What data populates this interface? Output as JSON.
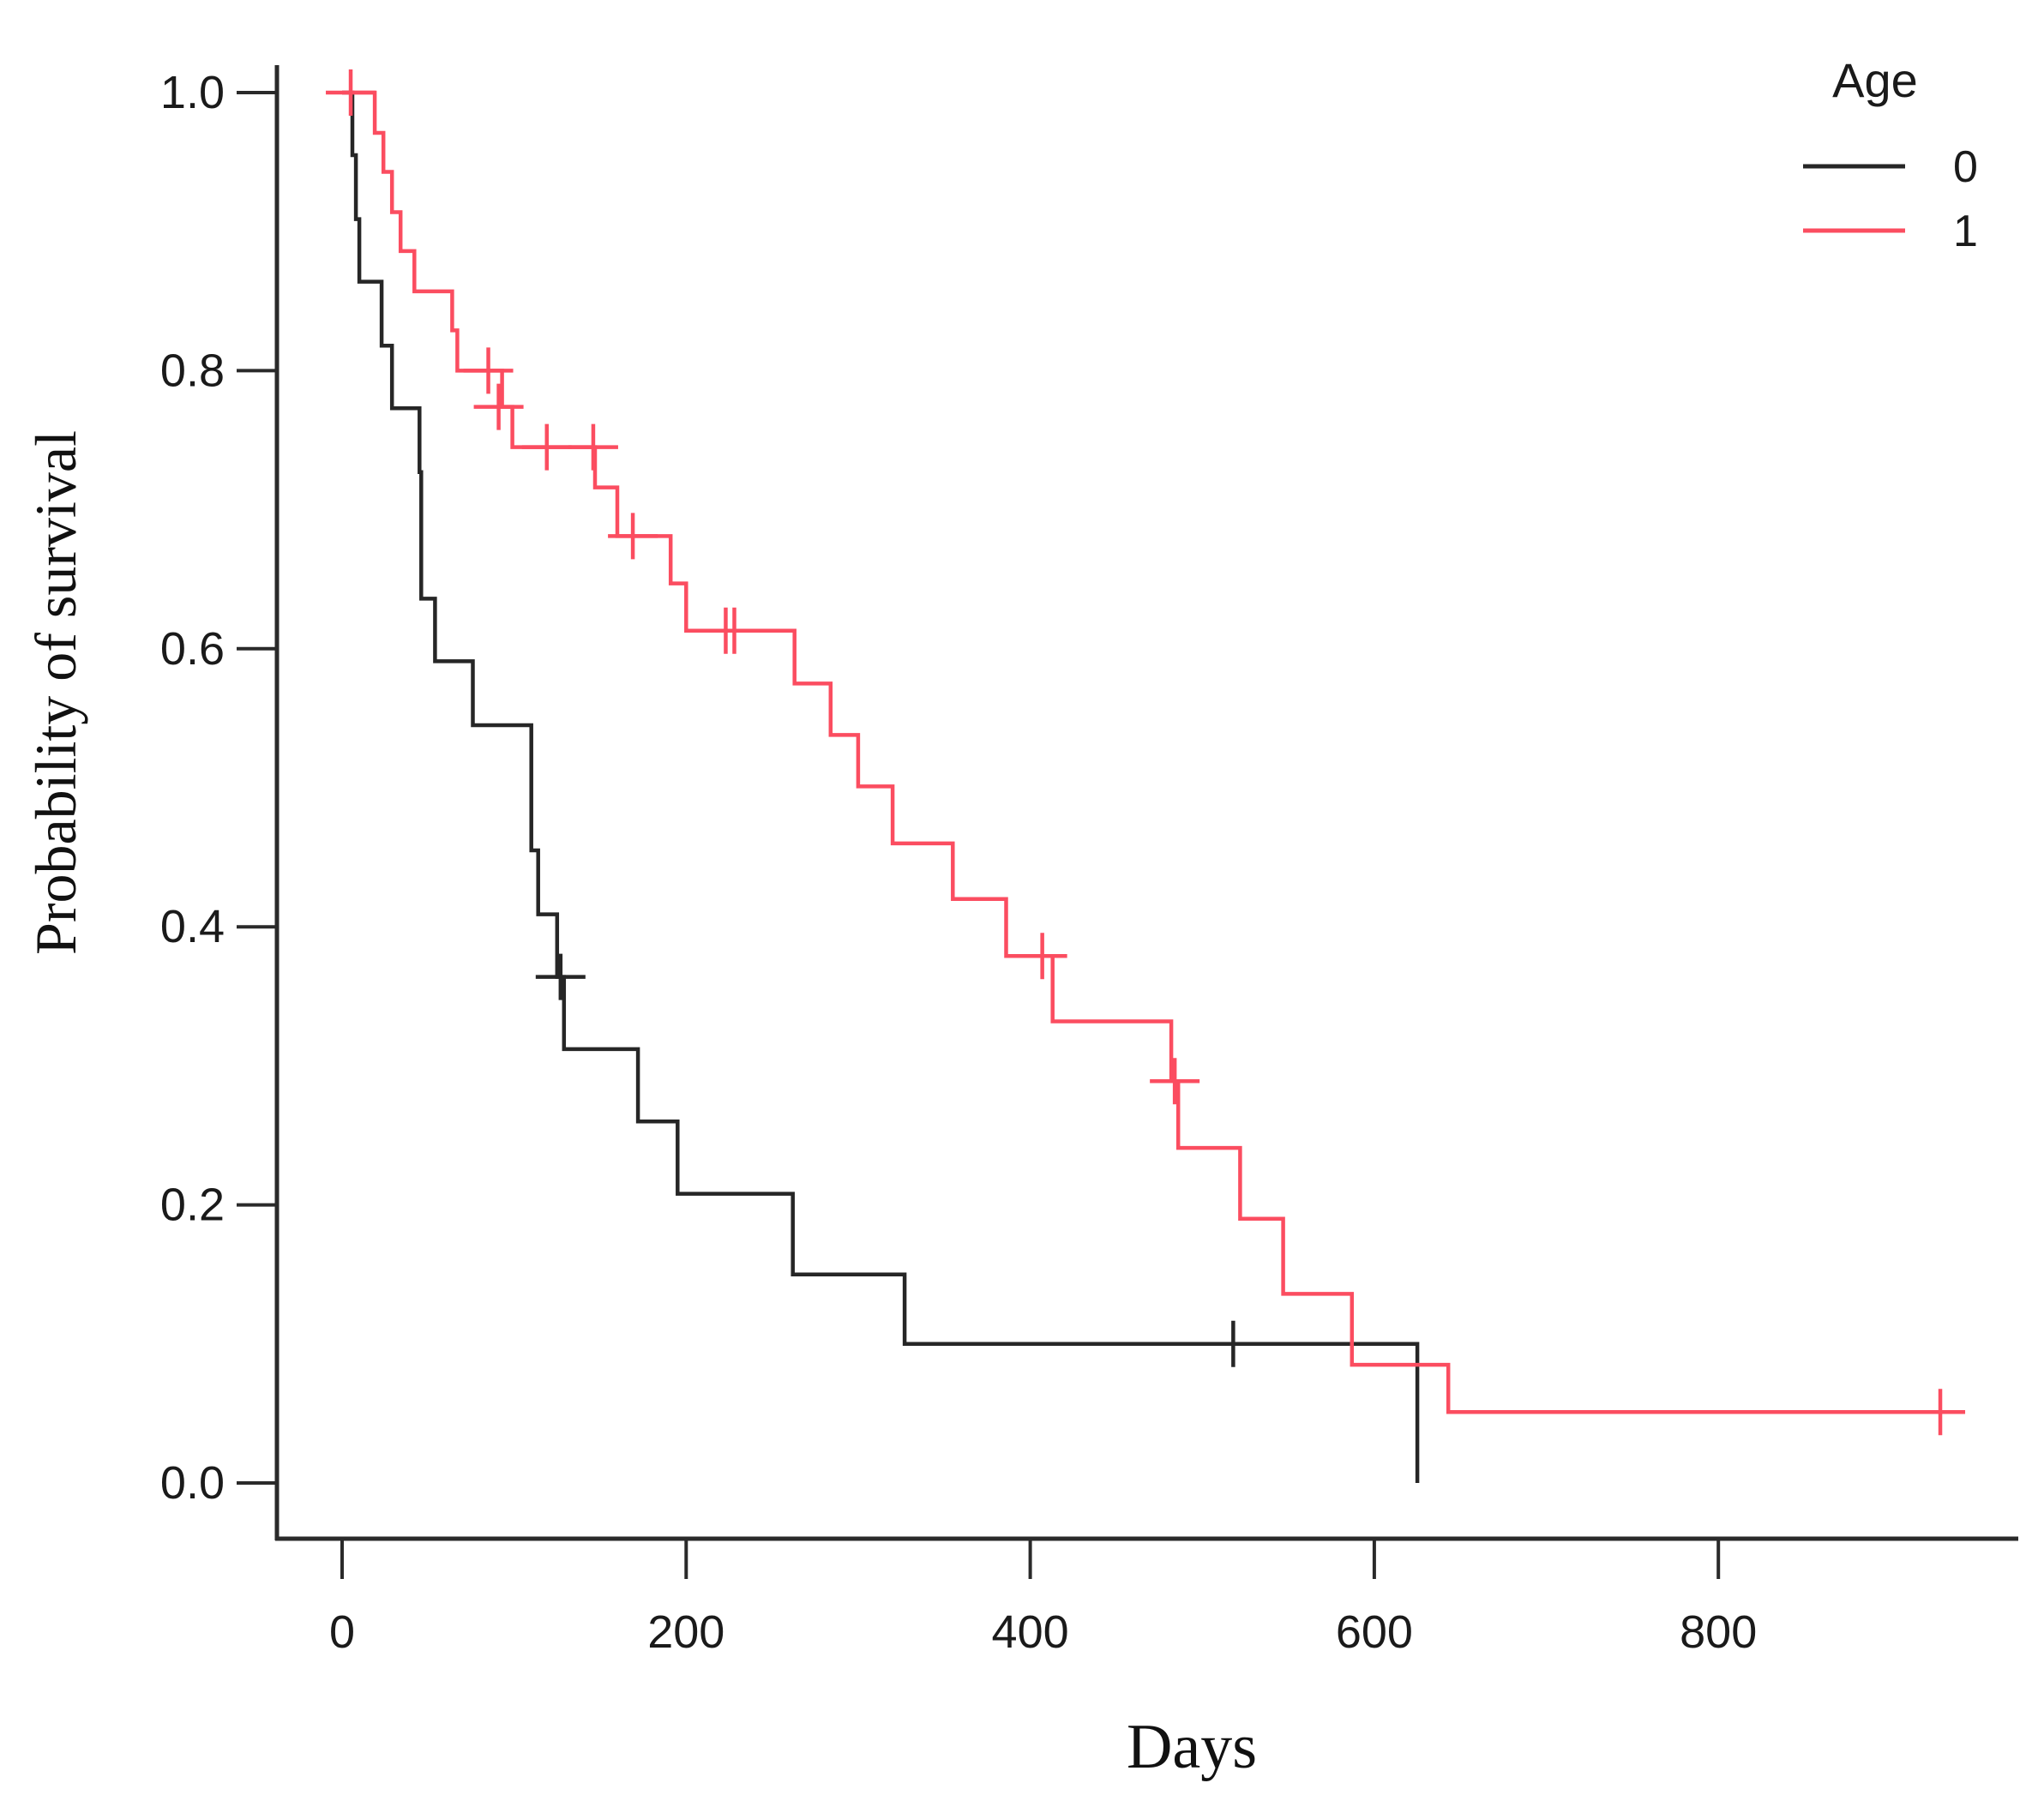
{
  "figure": {
    "background": "#ffffff",
    "curve_color_age0": "#262626",
    "curve_color_age1": "#fb4d60",
    "axis_color": "#2a2a2a"
  },
  "chart_data": {
    "type": "line",
    "subtype": "kaplan-meier-step",
    "title": "",
    "xlabel": "Days",
    "ylabel": "Probability of survival",
    "xlim": [
      0,
      960
    ],
    "ylim": [
      0.0,
      1.0
    ],
    "grid": false,
    "x_ticks": [
      0,
      200,
      400,
      600,
      800
    ],
    "x_tick_labels": [
      "0",
      "200",
      "400",
      "600",
      "800"
    ],
    "y_ticks": [
      0.0,
      0.2,
      0.4,
      0.6,
      0.8,
      1.0
    ],
    "y_tick_labels": [
      "0.0",
      "0.2",
      "0.4",
      "0.6",
      "0.8",
      "1.0"
    ],
    "legend": {
      "title": "Age",
      "position": "top-right",
      "entries": [
        {
          "label": "0",
          "color": "#262626"
        },
        {
          "label": "1",
          "color": "#fb4d60"
        }
      ]
    },
    "series": [
      {
        "name": "0",
        "color": "#262626",
        "steps": [
          [
            0,
            1.0
          ],
          [
            6,
            1.0
          ],
          [
            6,
            0.955
          ],
          [
            8,
            0.955
          ],
          [
            8,
            0.909
          ],
          [
            10,
            0.909
          ],
          [
            10,
            0.864
          ],
          [
            23,
            0.864
          ],
          [
            23,
            0.818
          ],
          [
            29,
            0.818
          ],
          [
            29,
            0.773
          ],
          [
            45,
            0.773
          ],
          [
            45,
            0.727
          ],
          [
            46,
            0.727
          ],
          [
            46,
            0.636
          ],
          [
            54,
            0.636
          ],
          [
            54,
            0.591
          ],
          [
            76,
            0.591
          ],
          [
            76,
            0.545
          ],
          [
            110,
            0.545
          ],
          [
            110,
            0.455
          ],
          [
            114,
            0.455
          ],
          [
            114,
            0.409
          ],
          [
            125,
            0.409
          ],
          [
            125,
            0.364
          ],
          [
            129,
            0.364
          ],
          [
            129,
            0.312
          ],
          [
            172,
            0.312
          ],
          [
            172,
            0.26
          ],
          [
            195,
            0.26
          ],
          [
            195,
            0.208
          ],
          [
            262,
            0.208
          ],
          [
            262,
            0.15
          ],
          [
            327,
            0.15
          ],
          [
            327,
            0.1
          ],
          [
            625,
            0.1
          ],
          [
            625,
            0.0
          ]
        ],
        "censors": [
          [
            127,
            0.364
          ],
          [
            518,
            0.1
          ]
        ]
      },
      {
        "name": "1",
        "color": "#fb4d60",
        "steps": [
          [
            0,
            1.0
          ],
          [
            19,
            1.0
          ],
          [
            19,
            0.971
          ],
          [
            24,
            0.971
          ],
          [
            24,
            0.943
          ],
          [
            29,
            0.943
          ],
          [
            29,
            0.914
          ],
          [
            34,
            0.914
          ],
          [
            34,
            0.886
          ],
          [
            42,
            0.886
          ],
          [
            42,
            0.857
          ],
          [
            64,
            0.857
          ],
          [
            64,
            0.829
          ],
          [
            67,
            0.829
          ],
          [
            67,
            0.8
          ],
          [
            93,
            0.8
          ],
          [
            93,
            0.774
          ],
          [
            99,
            0.774
          ],
          [
            99,
            0.745
          ],
          [
            147,
            0.745
          ],
          [
            147,
            0.716
          ],
          [
            160,
            0.716
          ],
          [
            160,
            0.681
          ],
          [
            191,
            0.681
          ],
          [
            191,
            0.647
          ],
          [
            200,
            0.647
          ],
          [
            200,
            0.613
          ],
          [
            263,
            0.613
          ],
          [
            263,
            0.575
          ],
          [
            284,
            0.575
          ],
          [
            284,
            0.538
          ],
          [
            300,
            0.538
          ],
          [
            300,
            0.501
          ],
          [
            320,
            0.501
          ],
          [
            320,
            0.46
          ],
          [
            355,
            0.46
          ],
          [
            355,
            0.42
          ],
          [
            386,
            0.42
          ],
          [
            386,
            0.379
          ],
          [
            413,
            0.379
          ],
          [
            413,
            0.332
          ],
          [
            482,
            0.332
          ],
          [
            482,
            0.289
          ],
          [
            486,
            0.289
          ],
          [
            486,
            0.241
          ],
          [
            522,
            0.241
          ],
          [
            522,
            0.19
          ],
          [
            547,
            0.19
          ],
          [
            547,
            0.136
          ],
          [
            587,
            0.136
          ],
          [
            587,
            0.085
          ],
          [
            643,
            0.085
          ],
          [
            643,
            0.051
          ],
          [
            939,
            0.051
          ]
        ],
        "censors": [
          [
            5,
            1.0
          ],
          [
            85,
            0.8
          ],
          [
            91,
            0.774
          ],
          [
            119,
            0.745
          ],
          [
            146,
            0.745
          ],
          [
            169,
            0.681
          ],
          [
            223,
            0.613
          ],
          [
            228,
            0.613
          ],
          [
            407,
            0.379
          ],
          [
            484,
            0.289
          ],
          [
            929,
            0.051
          ]
        ]
      }
    ]
  }
}
